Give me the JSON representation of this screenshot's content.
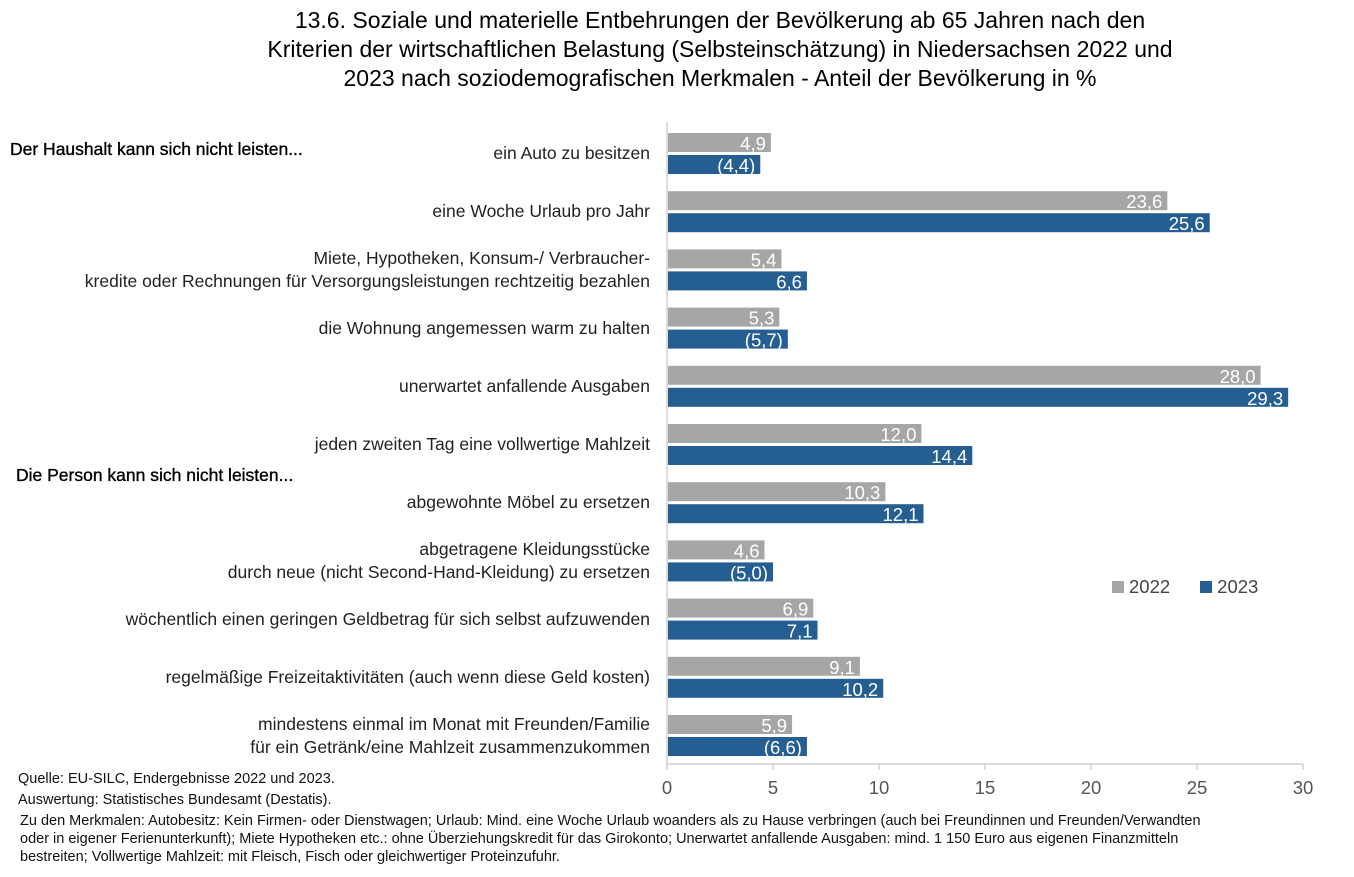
{
  "chart_data": {
    "type": "bar",
    "orientation": "horizontal",
    "title": "13.6. Soziale und materielle Entbehrungen der Bevölkerung ab 65 Jahren nach den Kriterien der wirtschaftlichen Belastung (Selbsteinschätzung) in Niedersachsen 2022 und 2023 nach soziodemografischen Merkmalen - Anteil der Bevölkerung in %",
    "title_lines": [
      "13.6. Soziale und materielle Entbehrungen der Bevölkerung ab 65 Jahren nach den",
      "Kriterien der wirtschaftlichen Belastung (Selbsteinschätzung) in Niedersachsen 2022 und",
      "2023 nach soziodemografischen Merkmalen - Anteil der Bevölkerung in %"
    ],
    "section_labels": {
      "household": "Der Haushalt kann sich nicht leisten...",
      "person": "Die Person kann sich nicht leisten..."
    },
    "categories": [
      [
        "ein Auto zu besitzen"
      ],
      [
        "eine Woche Urlaub pro Jahr"
      ],
      [
        "Miete, Hypotheken, Konsum-/ Verbraucher-",
        "kredite oder Rechnungen für Versorgungsleistungen rechtzeitig bezahlen"
      ],
      [
        "die Wohnung angemessen warm zu halten"
      ],
      [
        "unerwartet anfallende Ausgaben"
      ],
      [
        "jeden zweiten Tag eine vollwertige Mahlzeit"
      ],
      [
        "abgewohnte Möbel zu ersetzen"
      ],
      [
        "abgetragene Kleidungsstücke",
        "durch neue (nicht Second-Hand-Kleidung) zu ersetzen"
      ],
      [
        "wöchentlich einen geringen Geldbetrag für sich selbst aufzuwenden"
      ],
      [
        "regelmäßige Freizeitaktivitäten (auch wenn diese Geld kosten)"
      ],
      [
        "mindestens einmal im Monat mit Freunden/Familie",
        "für ein Getränk/eine Mahlzeit zusammenzukommen"
      ]
    ],
    "series": [
      {
        "name": "2022",
        "color": "#a6a6a6",
        "values": [
          4.9,
          23.6,
          5.4,
          5.3,
          28.0,
          12.0,
          10.3,
          4.6,
          6.9,
          9.1,
          5.9
        ],
        "labels": [
          "4,9",
          "23,6",
          "5,4",
          "5,3",
          "28,0",
          "12,0",
          "10,3",
          "4,6",
          "6,9",
          "9,1",
          "5,9"
        ]
      },
      {
        "name": "2023",
        "color": "#255e91",
        "values": [
          4.4,
          25.6,
          6.6,
          5.7,
          29.3,
          14.4,
          12.1,
          5.0,
          7.1,
          10.2,
          6.6
        ],
        "labels": [
          "(4,4)",
          "25,6",
          "6,6",
          "(5,7)",
          "29,3",
          "14,4",
          "12,1",
          "(5,0)",
          "7,1",
          "10,2",
          "(6,6)"
        ]
      }
    ],
    "xlim": [
      0,
      30
    ],
    "xticks": [
      0,
      5,
      10,
      15,
      20,
      25,
      30
    ],
    "xlabel": "",
    "ylabel": "",
    "grid": false,
    "legend": {
      "position": "right",
      "entries": [
        "2022",
        "2023"
      ]
    }
  },
  "footer": {
    "source": "Quelle: EU-SILC, Endergebnisse 2022 und 2023.",
    "evaluation": "Auswertung: Statistisches Bundesamt (Destatis).",
    "notes_lines": [
      "Zu den Merkmalen: Autobesitz: Kein Firmen- oder Dienstwagen; Urlaub: Mind. eine Woche Urlaub woanders als zu Hause verbringen (auch bei Freundinnen und Freunden/Verwandten",
      "oder in eigener Ferienunterkunft); Miete Hypotheken etc.: ohne Überziehungskredit für das Girokonto; Unerwartet anfallende Ausgaben: mind. 1 150 Euro aus eigenen Finanzmitteln",
      "bestreiten; Vollwertige Mahlzeit: mit Fleisch, Fisch oder gleichwertiger Proteinzufuhr."
    ]
  }
}
